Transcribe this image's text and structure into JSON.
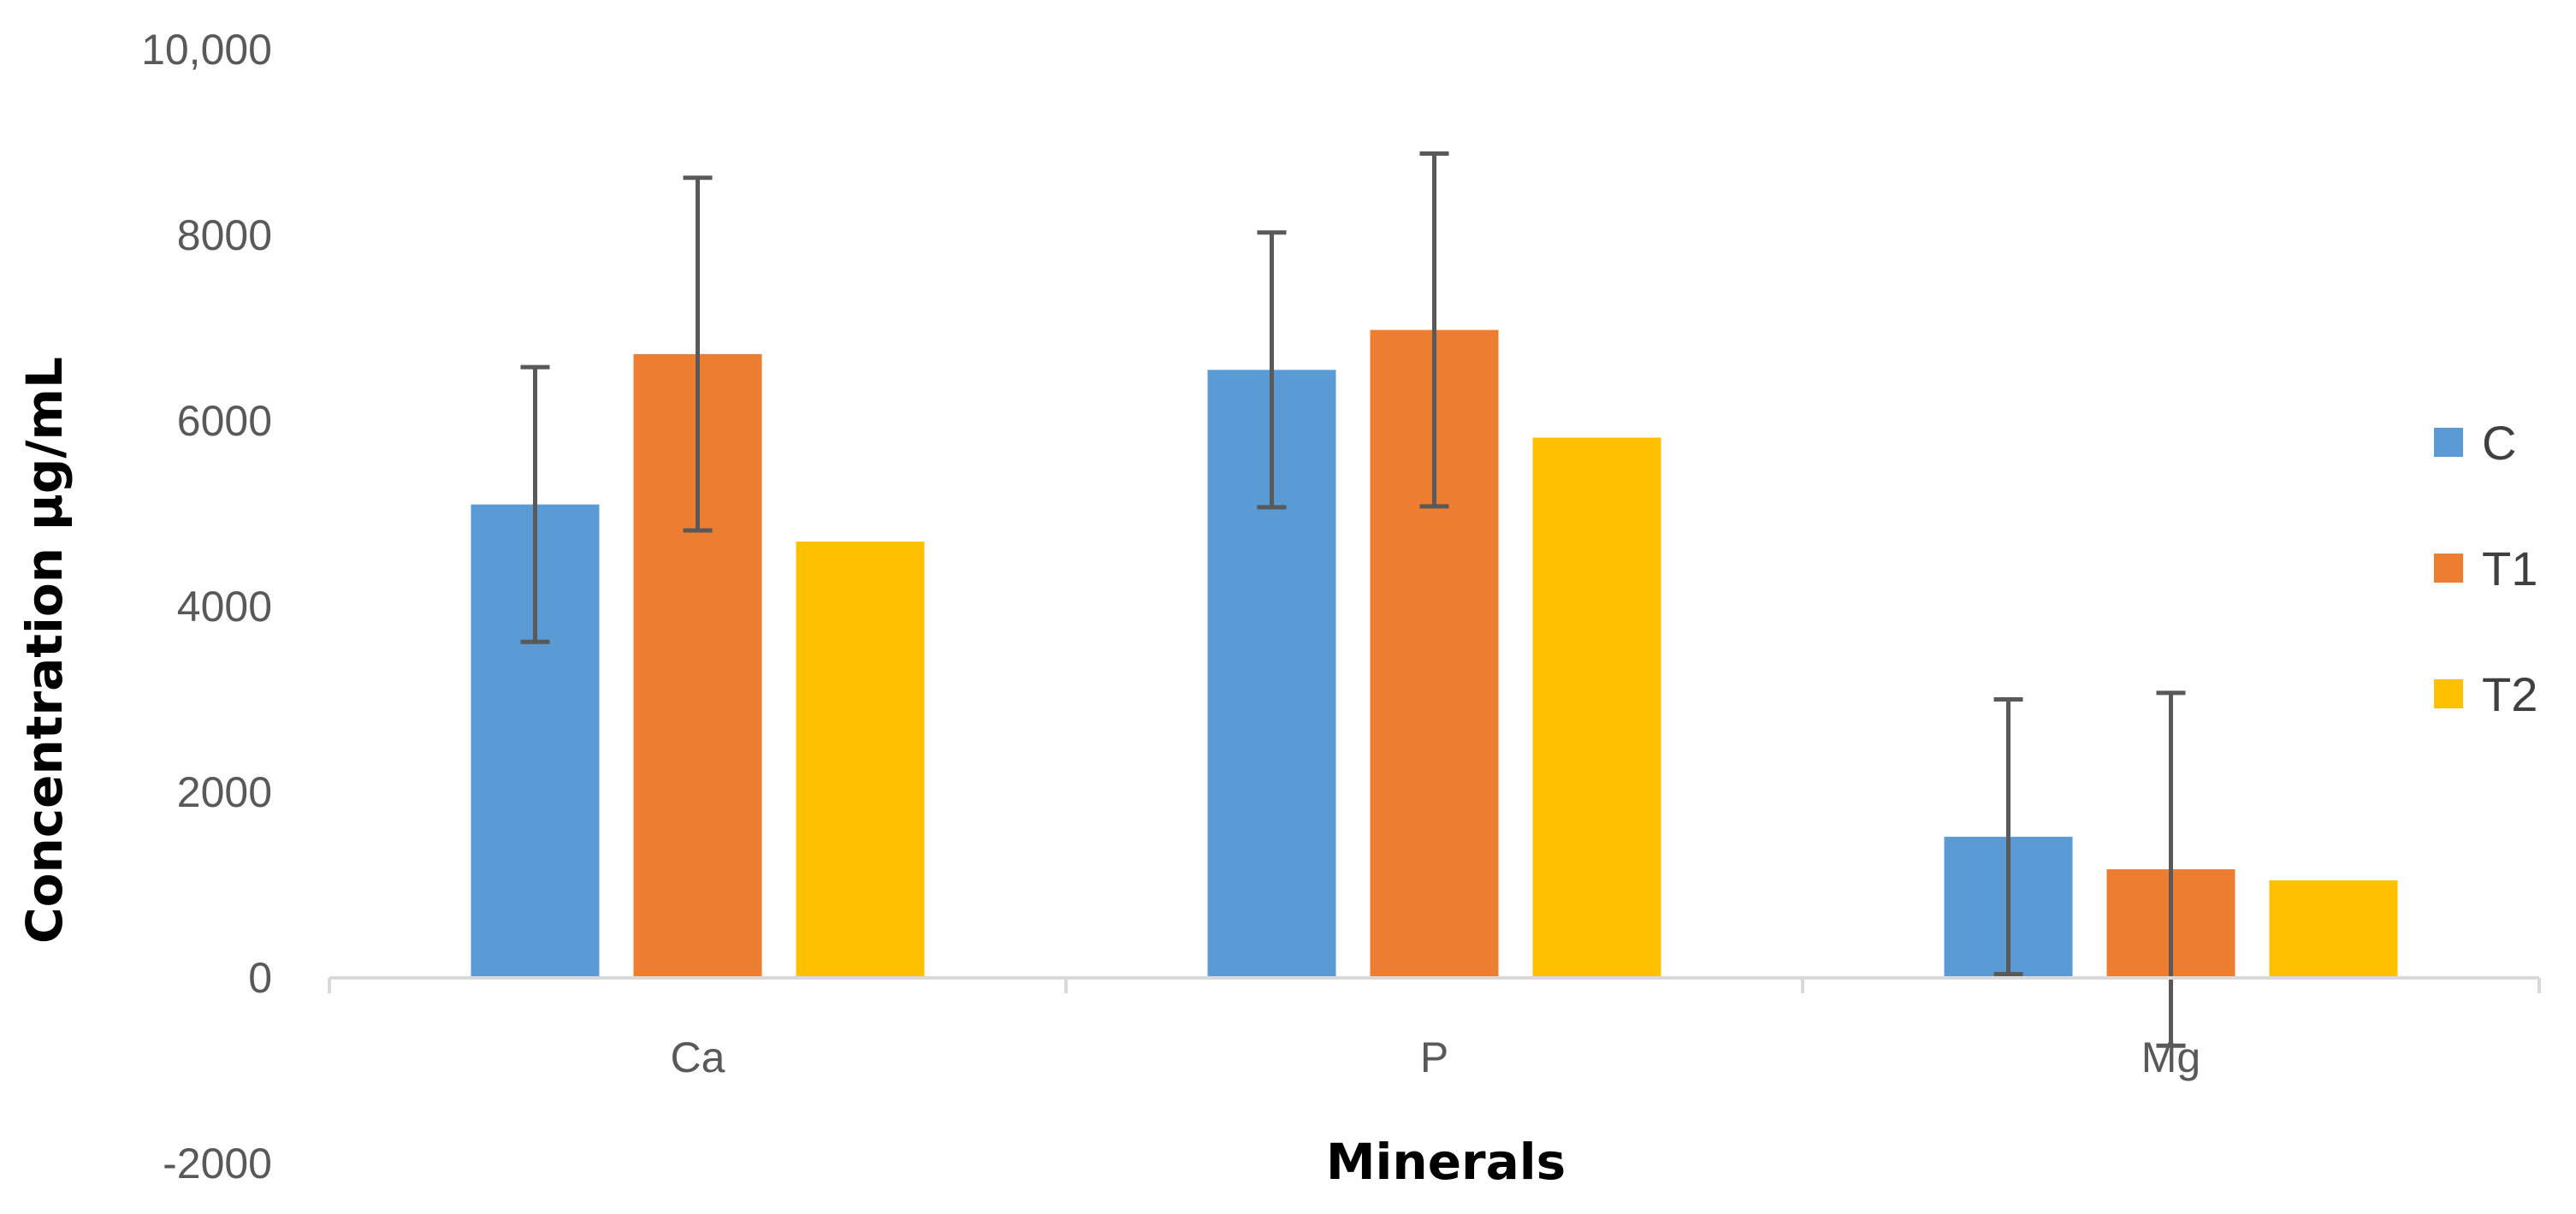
{
  "chart_data": {
    "type": "bar",
    "title": "",
    "xlabel": "Minerals",
    "ylabel": "Concentration µg/mL",
    "categories": [
      "Ca",
      "P",
      "Mg"
    ],
    "ylim": [
      -2000,
      10000
    ],
    "yticks": [
      {
        "value": 10000,
        "label": "10,000"
      },
      {
        "value": 8000,
        "label": "8000"
      },
      {
        "value": 6000,
        "label": "6000"
      },
      {
        "value": 4000,
        "label": "4000"
      },
      {
        "value": 2000,
        "label": "2000"
      },
      {
        "value": 0,
        "label": "0"
      },
      {
        "value": -2000,
        "label": "-2000"
      }
    ],
    "grid": false,
    "legend_position": "right",
    "series": [
      {
        "name": "C",
        "color": "#5B9BD5",
        "values": [
          5100,
          6550,
          1520
        ],
        "errors": [
          1480,
          1480,
          1480
        ]
      },
      {
        "name": "T1",
        "color": "#ED7D31",
        "values": [
          6720,
          6980,
          1170
        ],
        "errors": [
          1900,
          1900,
          1900
        ]
      },
      {
        "name": "T2",
        "color": "#FFC000",
        "values": [
          4700,
          5820,
          1050
        ],
        "errors": null
      }
    ],
    "error_bar_color": "#595959",
    "axis_color": "#D9D9D9"
  }
}
